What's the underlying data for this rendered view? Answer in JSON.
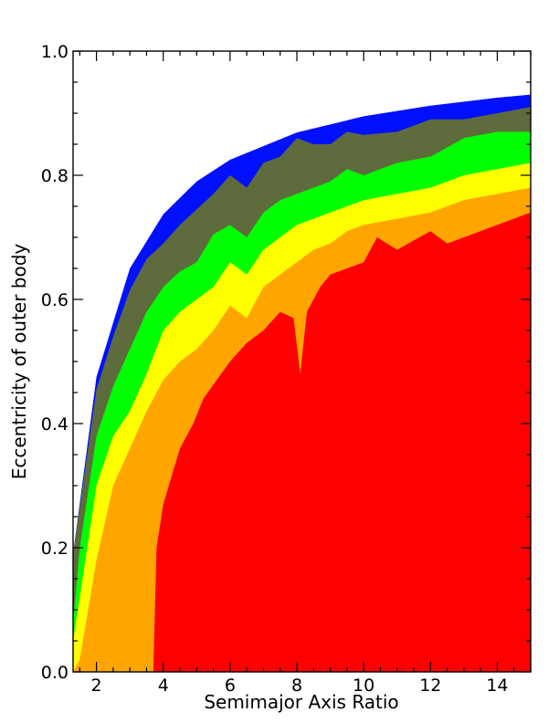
{
  "chart_data": {
    "type": "area",
    "title": "",
    "xlabel": "Semimajor Axis Ratio",
    "ylabel": "Eccentricity of outer body",
    "xlim": [
      1.3,
      15
    ],
    "ylim": [
      0,
      1
    ],
    "xticks": [
      2,
      4,
      6,
      8,
      10,
      12,
      14
    ],
    "yticks": [
      0.0,
      0.2,
      0.4,
      0.6,
      0.8,
      1.0
    ],
    "ytick_labels": [
      "0.0",
      "0.2",
      "0.4",
      "0.6",
      "0.8",
      "1.0"
    ],
    "grid": false,
    "legend": "none",
    "envelope": "e_max = 1 - 1.05 / r",
    "colors": {
      "background_region": "#ffffff",
      "band_envelope": "#0010ff",
      "band_olive": "#5e6b3c",
      "band_green": "#00ff00",
      "band_yellow": "#ffff00",
      "band_orange": "#ffa500",
      "band_red": "#ff0000"
    },
    "bands": [
      {
        "color": "#0010ff",
        "boundary": [
          [
            1.3,
            0.19
          ],
          [
            2,
            0.475
          ],
          [
            3,
            0.65
          ],
          [
            4,
            0.737
          ],
          [
            5,
            0.79
          ],
          [
            6,
            0.825
          ],
          [
            8,
            0.869
          ],
          [
            10,
            0.895
          ],
          [
            12,
            0.912
          ],
          [
            14,
            0.925
          ],
          [
            15,
            0.93
          ]
        ]
      },
      {
        "color": "#5e6b3c",
        "boundary": [
          [
            1.3,
            0.19
          ],
          [
            2,
            0.455
          ],
          [
            2.5,
            0.54
          ],
          [
            3,
            0.615
          ],
          [
            3.5,
            0.665
          ],
          [
            4,
            0.69
          ],
          [
            4.5,
            0.72
          ],
          [
            5,
            0.745
          ],
          [
            5.5,
            0.77
          ],
          [
            6,
            0.8
          ],
          [
            6.5,
            0.78
          ],
          [
            7,
            0.82
          ],
          [
            7.5,
            0.83
          ],
          [
            8,
            0.86
          ],
          [
            8.5,
            0.85
          ],
          [
            9,
            0.85
          ],
          [
            9.5,
            0.87
          ],
          [
            10,
            0.865
          ],
          [
            11,
            0.87
          ],
          [
            12,
            0.89
          ],
          [
            13,
            0.89
          ],
          [
            14,
            0.9
          ],
          [
            15,
            0.91
          ]
        ]
      },
      {
        "color": "#00ff00",
        "boundary": [
          [
            1.3,
            0.08
          ],
          [
            1.5,
            0.2
          ],
          [
            2,
            0.38
          ],
          [
            2.5,
            0.46
          ],
          [
            3,
            0.52
          ],
          [
            3.5,
            0.58
          ],
          [
            4,
            0.62
          ],
          [
            4.5,
            0.645
          ],
          [
            5,
            0.66
          ],
          [
            5.5,
            0.705
          ],
          [
            6,
            0.72
          ],
          [
            6.5,
            0.7
          ],
          [
            7,
            0.74
          ],
          [
            7.5,
            0.76
          ],
          [
            8,
            0.77
          ],
          [
            8.5,
            0.78
          ],
          [
            9,
            0.79
          ],
          [
            9.5,
            0.81
          ],
          [
            10,
            0.8
          ],
          [
            11,
            0.82
          ],
          [
            12,
            0.83
          ],
          [
            13,
            0.86
          ],
          [
            14,
            0.87
          ],
          [
            15,
            0.87
          ]
        ]
      },
      {
        "color": "#ffff00",
        "boundary": [
          [
            1.3,
            0.05
          ],
          [
            1.5,
            0.12
          ],
          [
            2,
            0.3
          ],
          [
            2.5,
            0.38
          ],
          [
            3,
            0.42
          ],
          [
            3.5,
            0.48
          ],
          [
            4,
            0.55
          ],
          [
            4.5,
            0.58
          ],
          [
            5,
            0.6
          ],
          [
            5.5,
            0.62
          ],
          [
            6,
            0.66
          ],
          [
            6.5,
            0.64
          ],
          [
            7,
            0.68
          ],
          [
            7.5,
            0.7
          ],
          [
            8,
            0.72
          ],
          [
            8.5,
            0.73
          ],
          [
            9,
            0.74
          ],
          [
            9.5,
            0.75
          ],
          [
            10,
            0.76
          ],
          [
            11,
            0.77
          ],
          [
            12,
            0.78
          ],
          [
            13,
            0.8
          ],
          [
            14,
            0.81
          ],
          [
            15,
            0.82
          ]
        ]
      },
      {
        "color": "#ffa500",
        "boundary": [
          [
            1.3,
            0.0
          ],
          [
            1.5,
            0.02
          ],
          [
            2,
            0.18
          ],
          [
            2.5,
            0.3
          ],
          [
            3,
            0.36
          ],
          [
            3.5,
            0.42
          ],
          [
            4,
            0.47
          ],
          [
            4.5,
            0.5
          ],
          [
            5,
            0.52
          ],
          [
            5.5,
            0.55
          ],
          [
            6,
            0.59
          ],
          [
            6.5,
            0.57
          ],
          [
            7,
            0.62
          ],
          [
            7.5,
            0.64
          ],
          [
            8,
            0.66
          ],
          [
            8.5,
            0.68
          ],
          [
            9,
            0.69
          ],
          [
            9.5,
            0.71
          ],
          [
            10,
            0.72
          ],
          [
            11,
            0.73
          ],
          [
            12,
            0.74
          ],
          [
            13,
            0.76
          ],
          [
            14,
            0.77
          ],
          [
            15,
            0.78
          ]
        ]
      },
      {
        "color": "#ff0000",
        "boundary": [
          [
            3.7,
            0.0
          ],
          [
            3.8,
            0.2
          ],
          [
            4,
            0.27
          ],
          [
            4.5,
            0.36
          ],
          [
            4.9,
            0.4
          ],
          [
            5.2,
            0.44
          ],
          [
            5.6,
            0.47
          ],
          [
            6,
            0.5
          ],
          [
            6.5,
            0.53
          ],
          [
            7,
            0.55
          ],
          [
            7.5,
            0.58
          ],
          [
            7.9,
            0.57
          ],
          [
            8.1,
            0.48
          ],
          [
            8.3,
            0.58
          ],
          [
            8.7,
            0.62
          ],
          [
            9,
            0.64
          ],
          [
            9.5,
            0.65
          ],
          [
            10,
            0.66
          ],
          [
            10.4,
            0.7
          ],
          [
            11,
            0.68
          ],
          [
            12,
            0.71
          ],
          [
            12.5,
            0.69
          ],
          [
            13,
            0.7
          ],
          [
            14,
            0.72
          ],
          [
            15,
            0.74
          ]
        ]
      }
    ]
  }
}
